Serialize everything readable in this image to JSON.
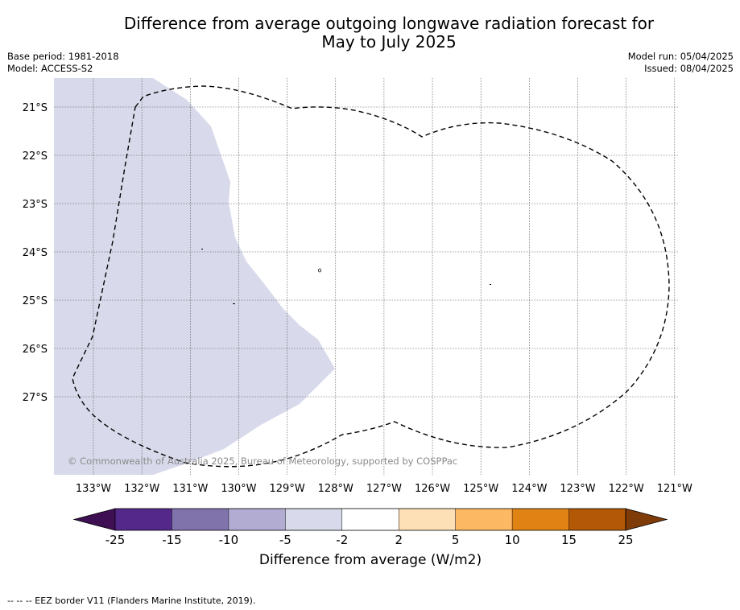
{
  "title_line1": "Difference from average outgoing longwave radiation forecast for",
  "title_line2": "May to July 2025",
  "base_period": "Base period: 1981-2018",
  "model": "Model: ACCESS-S2",
  "model_run": "Model run: 05/04/2025",
  "issued": "Issued: 08/04/2025",
  "copyright": "© Commonwealth of Australia 2025, Bureau of Meteorology, supported by COSPPac",
  "lat_labels": [
    "21°S",
    "22°S",
    "23°S",
    "24°S",
    "25°S",
    "26°S",
    "27°S"
  ],
  "lon_labels": [
    "133°W",
    "132°W",
    "131°W",
    "130°W",
    "129°W",
    "128°W",
    "127°W",
    "126°W",
    "125°W",
    "124°W",
    "123°W",
    "122°W",
    "121°W"
  ],
  "colorbar": {
    "title": "Difference from average (W/m2)",
    "ticks": [
      "-25",
      "-15",
      "-10",
      "-5",
      "-2",
      "2",
      "5",
      "10",
      "15",
      "25"
    ],
    "colors": [
      "#3f0f54",
      "#54288a",
      "#8073ac",
      "#b2abd2",
      "#d8daeb",
      "#ffffff",
      "#fee0b6",
      "#fdb863",
      "#e08214",
      "#b35806",
      "#7f3b08"
    ]
  },
  "map_colors": {
    "negative_region": "#d8daeb"
  },
  "footnote": "--  --  -- EEZ border V11 (Flanders Marine Institute, 2019)."
}
